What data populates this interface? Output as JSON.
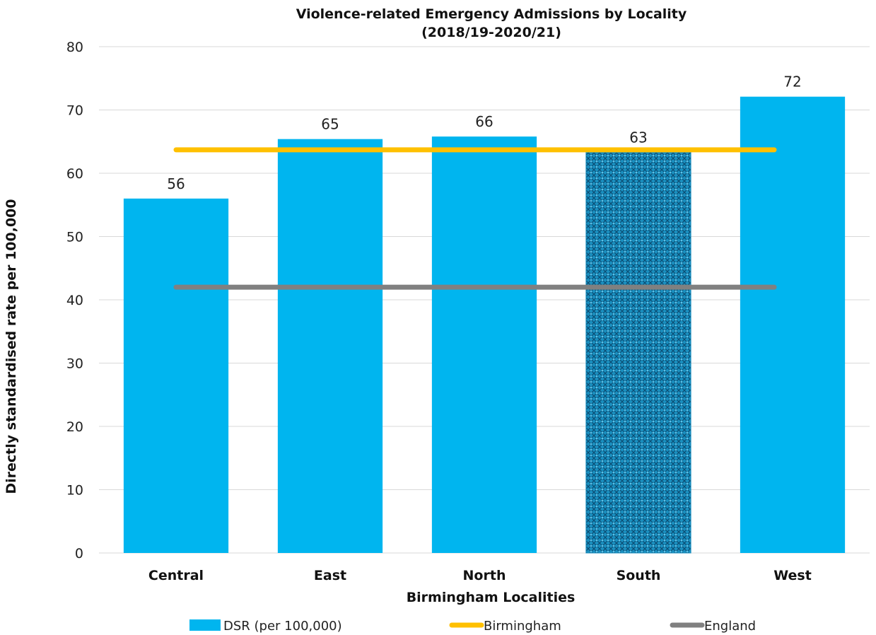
{
  "chart_data": {
    "type": "bar",
    "title_line1": "Violence-related Emergency Admissions by Locality",
    "title_line2": "(2018/19-2020/21)",
    "xlabel": "Birmingham Localities",
    "ylabel": "Directly standardised rate per 100,000",
    "categories": [
      "Central",
      "East",
      "North",
      "South",
      "West"
    ],
    "ylim": [
      0,
      80
    ],
    "yticks": [
      0,
      10,
      20,
      30,
      40,
      50,
      60,
      70,
      80
    ],
    "grid": true,
    "legend_position": "bottom",
    "series": [
      {
        "name": "DSR (per 100,000)",
        "kind": "bar",
        "values": [
          56,
          65.4,
          65.8,
          63.3,
          72.1
        ],
        "labels": [
          "56",
          "65",
          "66",
          "63",
          "72"
        ],
        "color": "#00b5ef",
        "highlight_category": "South",
        "highlight_color": "#1a8fbf"
      },
      {
        "name": "Birmingham",
        "kind": "line",
        "value": 63.7,
        "color": "#ffc000"
      },
      {
        "name": "England",
        "kind": "line",
        "value": 42,
        "color": "#808080"
      }
    ]
  }
}
